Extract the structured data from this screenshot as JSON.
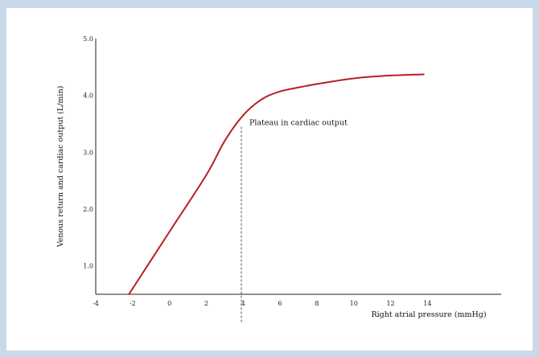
{
  "chart_data": {
    "type": "line",
    "title": "",
    "xlabel": "Right atrial pressure (mmHg)",
    "ylabel": "Venous return and cardiac output (L/min)",
    "xlim": [
      -4,
      18
    ],
    "ylim": [
      0.5,
      5.0
    ],
    "x_ticks": [
      -4,
      -2,
      0,
      2,
      4,
      6,
      8,
      10,
      12,
      14
    ],
    "x_tick_labels": [
      "-4",
      "-2",
      "0",
      "2",
      "4",
      "6",
      "8",
      "10",
      "12",
      "14"
    ],
    "y_ticks": [
      1.0,
      2.0,
      3.0,
      4.0,
      5.0
    ],
    "y_tick_labels": [
      "1.0",
      "2.0",
      "3.0",
      "4.0",
      "5.0"
    ],
    "grid": false,
    "series": [
      {
        "name": "",
        "color": "#b52025",
        "x": [
          -2.2,
          0,
          2,
          3,
          4,
          5,
          6,
          7,
          8,
          10,
          12,
          13.8
        ],
        "y": [
          0.5,
          1.6,
          2.6,
          3.2,
          3.65,
          3.93,
          4.07,
          4.14,
          4.2,
          4.3,
          4.35,
          4.37
        ]
      }
    ],
    "annotations": [
      {
        "text": "Plateau in cardiac output",
        "x": 3.9,
        "y_from": 0.0,
        "y_to": 3.45,
        "style": "dashed",
        "color": "#555555"
      }
    ]
  }
}
